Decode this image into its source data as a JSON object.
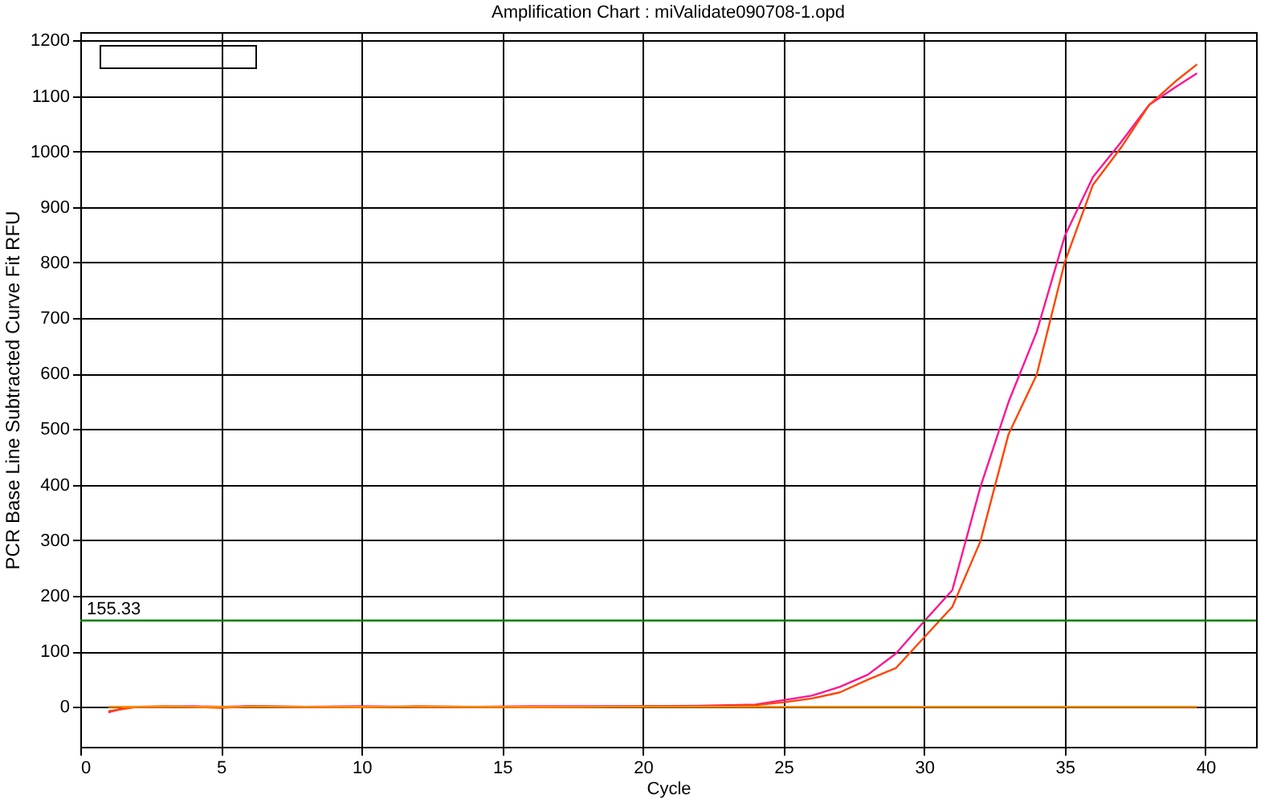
{
  "chart_data": {
    "type": "line",
    "title": "Amplification Chart : miValidate090708-1.opd",
    "xlabel": "Cycle",
    "ylabel": "PCR Base Line Subtracted Curve Fit RFU",
    "x": [
      1,
      1.5,
      2,
      3,
      4,
      5,
      6,
      8,
      10,
      12,
      14,
      16,
      18,
      20,
      22,
      23,
      24,
      25,
      26,
      27,
      28,
      29,
      30,
      31,
      32,
      33,
      34,
      35,
      36,
      37,
      38,
      39,
      39.7
    ],
    "series": [
      {
        "color": "#ff1493",
        "values": [
          -10,
          -3,
          0,
          0,
          1,
          0,
          1,
          0,
          1,
          0,
          0,
          1,
          1,
          1,
          2,
          3,
          4,
          12,
          20,
          36,
          58,
          96,
          154,
          210,
          396,
          549,
          675,
          848,
          954,
          1017,
          1084,
          1118,
          1141
        ]
      },
      {
        "color": "#ff4500",
        "values": [
          -8,
          -4,
          0,
          1,
          0,
          -2,
          1,
          0,
          -1,
          1,
          0,
          -1,
          0,
          1,
          1,
          2,
          3,
          8,
          15,
          26,
          49,
          70,
          125,
          180,
          298,
          491,
          598,
          801,
          940,
          1007,
          1084,
          1129,
          1157
        ]
      },
      {
        "color": "#ff8c00",
        "values": [
          0,
          0,
          0,
          0,
          0,
          0,
          0,
          0,
          0,
          0,
          0,
          0,
          0,
          0,
          0,
          0,
          0,
          0,
          0,
          0,
          0,
          0,
          0,
          0,
          0,
          0,
          0,
          0,
          0,
          0,
          0,
          0,
          0
        ]
      }
    ],
    "xlim": [
      0,
      41.8
    ],
    "xticks": [
      0,
      5,
      10,
      15,
      20,
      25,
      30,
      35,
      40
    ],
    "ylim": [
      -72,
      1215
    ],
    "yticks": [
      0,
      100,
      200,
      300,
      400,
      500,
      600,
      700,
      800,
      900,
      1000,
      1100,
      1200
    ],
    "ref_lines": [
      {
        "axis": "y",
        "value": 155.33,
        "label": "155.33",
        "color": "#008000"
      }
    ],
    "grid": true,
    "marker": "none",
    "line_style": "solid"
  }
}
